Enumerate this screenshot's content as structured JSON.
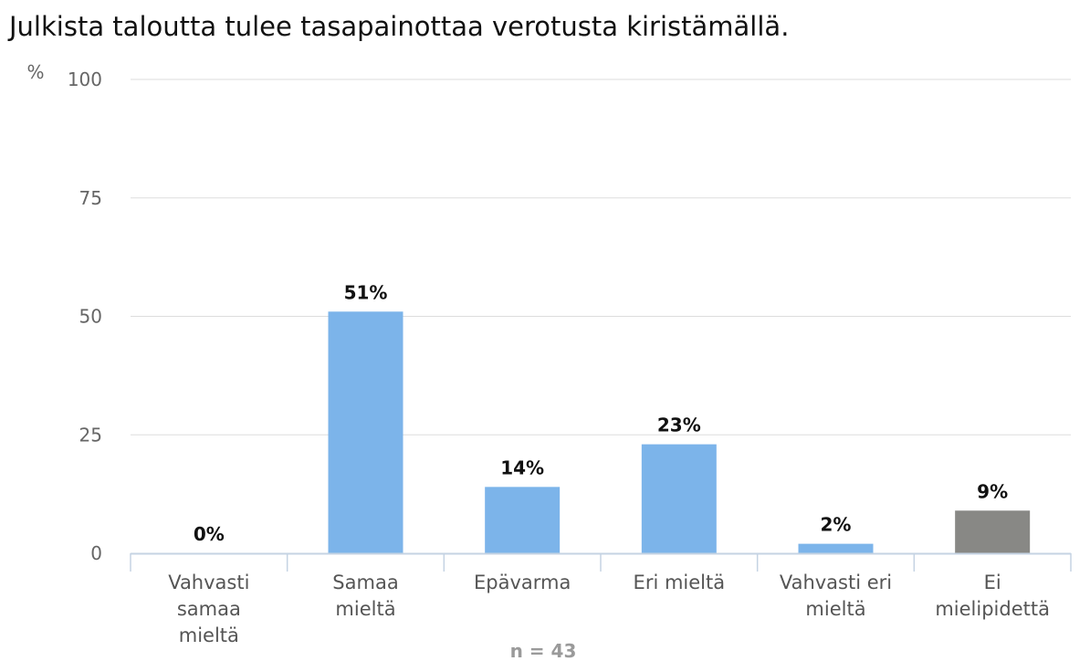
{
  "chart_data": {
    "type": "bar",
    "title": "Julkista taloutta tulee tasapainottaa verotusta kiristämällä.",
    "yunit": "%",
    "ylim": [
      0,
      100
    ],
    "yticks": [
      0,
      25,
      50,
      75,
      100
    ],
    "grid": true,
    "categories": [
      [
        "Vahvasti",
        "samaa",
        "mieltä"
      ],
      [
        "Samaa",
        "mieltä"
      ],
      [
        "Epävarma"
      ],
      [
        "Eri mieltä"
      ],
      [
        "Vahvasti eri",
        "mieltä"
      ],
      [
        "Ei",
        "mielipidettä"
      ]
    ],
    "values": [
      0,
      51,
      14,
      23,
      2,
      9
    ],
    "labels": [
      "0%",
      "51%",
      "14%",
      "23%",
      "2%",
      "9%"
    ],
    "colors": [
      "#7cb4ea",
      "#7cb4ea",
      "#7cb4ea",
      "#7cb4ea",
      "#7cb4ea",
      "#888885"
    ],
    "note": "n = 43"
  }
}
